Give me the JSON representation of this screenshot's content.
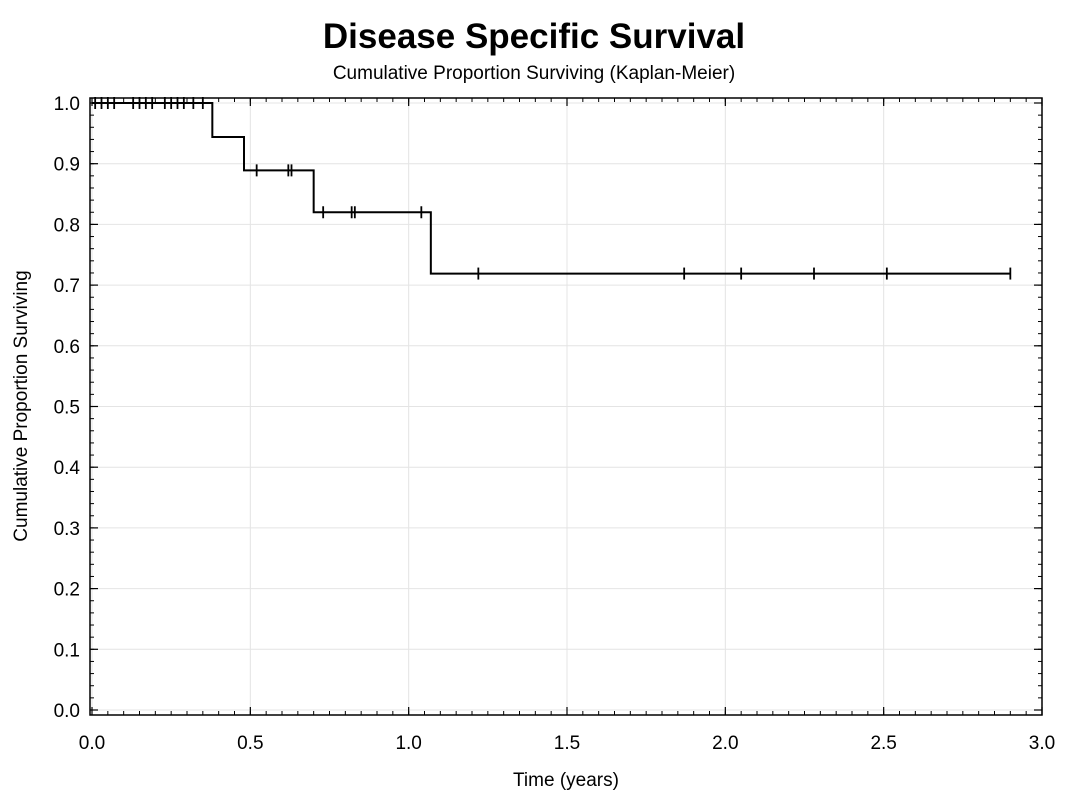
{
  "chart_data": {
    "type": "line",
    "title": "Disease Specific Survival",
    "subtitle": "Cumulative Proportion Surviving (Kaplan-Meier)",
    "xlabel": "Time (years)",
    "ylabel": "Cumulative Proportion Surviving",
    "xlim": [
      0,
      3
    ],
    "ylim": [
      0,
      1
    ],
    "x_ticks": [
      {
        "value": 0,
        "label": "0.0"
      },
      {
        "value": 0.5,
        "label": "0.5"
      },
      {
        "value": 1,
        "label": "1.0"
      },
      {
        "value": 1.5,
        "label": "1.5"
      },
      {
        "value": 2,
        "label": "2.0"
      },
      {
        "value": 2.5,
        "label": "2.5"
      },
      {
        "value": 3,
        "label": "3.0"
      }
    ],
    "y_ticks": [
      {
        "value": 0,
        "label": "0.0"
      },
      {
        "value": 0.1,
        "label": "0.1"
      },
      {
        "value": 0.2,
        "label": "0.2"
      },
      {
        "value": 0.3,
        "label": "0.3"
      },
      {
        "value": 0.4,
        "label": "0.4"
      },
      {
        "value": 0.5,
        "label": "0.5"
      },
      {
        "value": 0.6,
        "label": "0.6"
      },
      {
        "value": 0.7,
        "label": "0.7"
      },
      {
        "value": 0.8,
        "label": "0.8"
      },
      {
        "value": 0.9,
        "label": "0.9"
      },
      {
        "value": 1,
        "label": "1.0"
      }
    ],
    "grid": true,
    "legend": "none",
    "series": [
      {
        "step": "post",
        "color": "#000000",
        "points": [
          {
            "x": 0,
            "y": 1.0
          },
          {
            "x": 0.38,
            "y": 0.944
          },
          {
            "x": 0.48,
            "y": 0.889
          },
          {
            "x": 0.7,
            "y": 0.82
          },
          {
            "x": 1.07,
            "y": 0.719
          },
          {
            "x": 2.9,
            "y": 0.719
          }
        ],
        "censored": [
          {
            "x": 0.01,
            "y": 1.0
          },
          {
            "x": 0.03,
            "y": 1.0
          },
          {
            "x": 0.05,
            "y": 1.0
          },
          {
            "x": 0.07,
            "y": 1.0
          },
          {
            "x": 0.13,
            "y": 1.0
          },
          {
            "x": 0.15,
            "y": 1.0
          },
          {
            "x": 0.17,
            "y": 1.0
          },
          {
            "x": 0.19,
            "y": 1.0
          },
          {
            "x": 0.23,
            "y": 1.0
          },
          {
            "x": 0.25,
            "y": 1.0
          },
          {
            "x": 0.27,
            "y": 1.0
          },
          {
            "x": 0.29,
            "y": 1.0
          },
          {
            "x": 0.32,
            "y": 1.0
          },
          {
            "x": 0.35,
            "y": 1.0
          },
          {
            "x": 0.52,
            "y": 0.889
          },
          {
            "x": 0.62,
            "y": 0.889
          },
          {
            "x": 0.63,
            "y": 0.889
          },
          {
            "x": 0.73,
            "y": 0.82
          },
          {
            "x": 0.82,
            "y": 0.82
          },
          {
            "x": 0.83,
            "y": 0.82
          },
          {
            "x": 1.04,
            "y": 0.82
          },
          {
            "x": 1.22,
            "y": 0.719
          },
          {
            "x": 1.87,
            "y": 0.719
          },
          {
            "x": 2.05,
            "y": 0.719
          },
          {
            "x": 2.28,
            "y": 0.719
          },
          {
            "x": 2.51,
            "y": 0.719
          },
          {
            "x": 2.9,
            "y": 0.719
          }
        ]
      }
    ]
  }
}
